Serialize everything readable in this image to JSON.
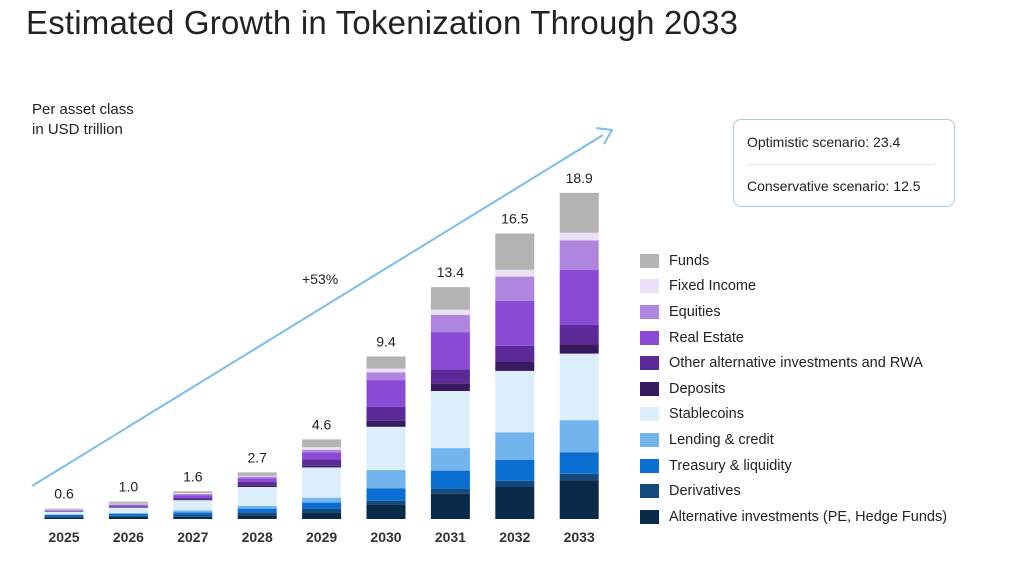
{
  "title": "Estimated Growth in Tokenization Through 2033",
  "unit_label_line1": "Per asset class",
  "unit_label_line2": "in USD trillion",
  "growth_label": "+53%",
  "scenarios": {
    "optimistic": "Optimistic scenario: 23.4",
    "conservative": "Conservative scenario: 12.5"
  },
  "colors": {
    "arrow": "#7cbde9",
    "scenario_border": "#a9cbe8"
  },
  "chart_data": {
    "type": "bar",
    "stacked": true,
    "categories": [
      "2025",
      "2026",
      "2027",
      "2028",
      "2029",
      "2030",
      "2031",
      "2032",
      "2033"
    ],
    "totals": [
      0.6,
      1.0,
      1.6,
      2.7,
      4.6,
      9.4,
      13.4,
      16.5,
      18.9
    ],
    "total_labels": [
      "0.6",
      "1.0",
      "1.6",
      "2.7",
      "4.6",
      "9.4",
      "13.4",
      "16.5",
      "18.9"
    ],
    "series": [
      {
        "name": "Alternative investments (PE, Hedge Funds)",
        "color": "#0b2a4a",
        "values": [
          0.1,
          0.12,
          0.13,
          0.22,
          0.38,
          0.85,
          1.45,
          1.85,
          2.25
        ]
      },
      {
        "name": "Derivatives",
        "color": "#14497d",
        "values": [
          0.05,
          0.07,
          0.1,
          0.15,
          0.22,
          0.2,
          0.3,
          0.36,
          0.36
        ]
      },
      {
        "name": "Treasury & liquidity",
        "color": "#0a6fd1",
        "values": [
          0.08,
          0.1,
          0.16,
          0.23,
          0.35,
          0.73,
          1.05,
          1.2,
          1.25
        ]
      },
      {
        "name": "Lending & credit",
        "color": "#72b4ee",
        "values": [
          0.03,
          0.06,
          0.1,
          0.15,
          0.28,
          1.05,
          1.3,
          1.6,
          1.85
        ]
      },
      {
        "name": "Stablecoins",
        "color": "#ddeefb",
        "values": [
          0.16,
          0.3,
          0.6,
          1.1,
          1.75,
          2.5,
          3.3,
          3.55,
          3.85
        ]
      },
      {
        "name": "Deposits",
        "color": "#3a1a5e",
        "values": [
          0.02,
          0.03,
          0.05,
          0.1,
          0.1,
          0.35,
          0.45,
          0.55,
          0.55
        ]
      },
      {
        "name": "Other alternative investments and RWA",
        "color": "#5c2a98",
        "values": [
          0.03,
          0.05,
          0.08,
          0.2,
          0.37,
          0.8,
          0.8,
          0.9,
          1.1
        ]
      },
      {
        "name": "Real Estate",
        "color": "#8a4ad6",
        "values": [
          0.03,
          0.07,
          0.14,
          0.2,
          0.4,
          1.55,
          2.15,
          2.6,
          3.2
        ]
      },
      {
        "name": "Equities",
        "color": "#b085e0",
        "values": [
          0.03,
          0.05,
          0.09,
          0.1,
          0.15,
          0.45,
          1.0,
          1.4,
          1.7
        ]
      },
      {
        "name": "Fixed Income",
        "color": "#ece0f6",
        "values": [
          0.02,
          0.03,
          0.05,
          0.05,
          0.15,
          0.22,
          0.3,
          0.39,
          0.44
        ]
      },
      {
        "name": "Funds",
        "color": "#b3b3b3",
        "values": [
          0.05,
          0.12,
          0.1,
          0.2,
          0.45,
          0.7,
          1.3,
          2.1,
          2.3
        ]
      }
    ],
    "legend_order": [
      "Funds",
      "Fixed Income",
      "Equities",
      "Real Estate",
      "Other alternative investments and RWA",
      "Deposits",
      "Stablecoins",
      "Lending & credit",
      "Treasury & liquidity",
      "Derivatives",
      "Alternative investments (PE, Hedge Funds)"
    ],
    "ylim": [
      0,
      18.9
    ],
    "grid": false,
    "legend_position": "right"
  }
}
